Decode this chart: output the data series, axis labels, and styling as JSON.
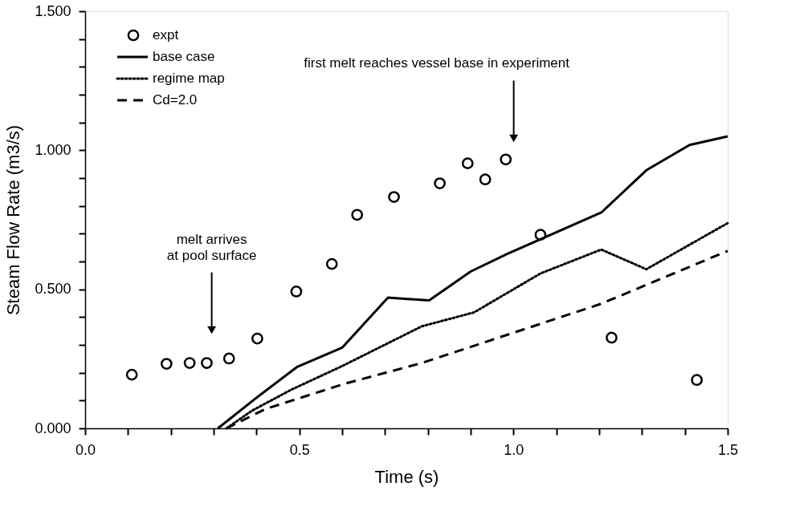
{
  "chart_data": {
    "type": "line",
    "xlabel": "Time (s)",
    "ylabel": "Steam Flow Rate (m3/s)",
    "xlim": [
      0,
      1.5
    ],
    "ylim": [
      0,
      1.5
    ],
    "xticks": [
      {
        "value": 0,
        "label": "0.0"
      },
      {
        "value": 0.1,
        "label": null
      },
      {
        "value": 0.2,
        "label": null
      },
      {
        "value": 0.3,
        "label": null
      },
      {
        "value": 0.4,
        "label": null
      },
      {
        "value": 0.5,
        "label": "0.5"
      },
      {
        "value": 0.6,
        "label": null
      },
      {
        "value": 0.7,
        "label": null
      },
      {
        "value": 0.8,
        "label": null
      },
      {
        "value": 0.9,
        "label": null
      },
      {
        "value": 1.0,
        "label": "1.0"
      },
      {
        "value": 1.1,
        "label": null
      },
      {
        "value": 1.2,
        "label": null
      },
      {
        "value": 1.3,
        "label": null
      },
      {
        "value": 1.4,
        "label": null
      },
      {
        "value": 1.5,
        "label": "1.5"
      }
    ],
    "yticks": [
      {
        "value": 0,
        "label": "0.000"
      },
      {
        "value": 0.1,
        "label": null
      },
      {
        "value": 0.2,
        "label": null
      },
      {
        "value": 0.3,
        "label": null
      },
      {
        "value": 0.4,
        "label": null
      },
      {
        "value": 0.5,
        "label": "0.500"
      },
      {
        "value": 0.6,
        "label": null
      },
      {
        "value": 0.7,
        "label": null
      },
      {
        "value": 0.8,
        "label": null
      },
      {
        "value": 0.9,
        "label": null
      },
      {
        "value": 1.0,
        "label": "1.000"
      },
      {
        "value": 1.1,
        "label": null
      },
      {
        "value": 1.2,
        "label": null
      },
      {
        "value": 1.3,
        "label": null
      },
      {
        "value": 1.4,
        "label": null
      },
      {
        "value": 1.5,
        "label": "1.500"
      }
    ],
    "grid": false,
    "legend": "top left",
    "series": [
      {
        "name": "expt",
        "type": "scatter",
        "marker": "circle",
        "color": "#000000",
        "x": [
          0.109,
          0.19,
          0.244,
          0.284,
          0.336,
          0.402,
          0.493,
          0.576,
          0.635,
          0.721,
          0.828,
          0.893,
          0.934,
          0.982,
          1.063,
          1.229,
          1.428
        ],
        "values": [
          0.193,
          0.232,
          0.235,
          0.235,
          0.251,
          0.323,
          0.492,
          0.591,
          0.768,
          0.832,
          0.881,
          0.953,
          0.895,
          0.967,
          0.696,
          0.326,
          0.174
        ]
      },
      {
        "name": "base case",
        "type": "line",
        "line_style": "solid",
        "color": "#000000",
        "x": [
          0.31,
          0.4,
          0.494,
          0.6,
          0.707,
          0.803,
          0.9,
          0.985,
          1.205,
          1.31,
          1.411,
          1.5
        ],
        "values": [
          0,
          0.11,
          0.22,
          0.29,
          0.47,
          0.46,
          0.564,
          0.627,
          0.776,
          0.928,
          1.019,
          1.05
        ]
      },
      {
        "name": "regime map",
        "type": "line",
        "line_style": "dotted",
        "color": "#000000",
        "x": [
          0.33,
          0.39,
          0.48,
          0.6,
          0.786,
          0.908,
          1.063,
          1.205,
          1.31,
          1.5
        ],
        "values": [
          0,
          0.064,
          0.138,
          0.224,
          0.367,
          0.417,
          0.557,
          0.643,
          0.572,
          0.738
        ]
      },
      {
        "name": "Cd=2.0",
        "type": "line",
        "line_style": "dashed",
        "color": "#000000",
        "x": [
          0.33,
          0.42,
          0.605,
          0.786,
          1.203,
          1.5
        ],
        "values": [
          0,
          0.069,
          0.16,
          0.235,
          0.447,
          0.638
        ]
      }
    ],
    "annotations": [
      "melt arrives\nat pool surface",
      "first melt reaches vessel base in experiment"
    ]
  }
}
